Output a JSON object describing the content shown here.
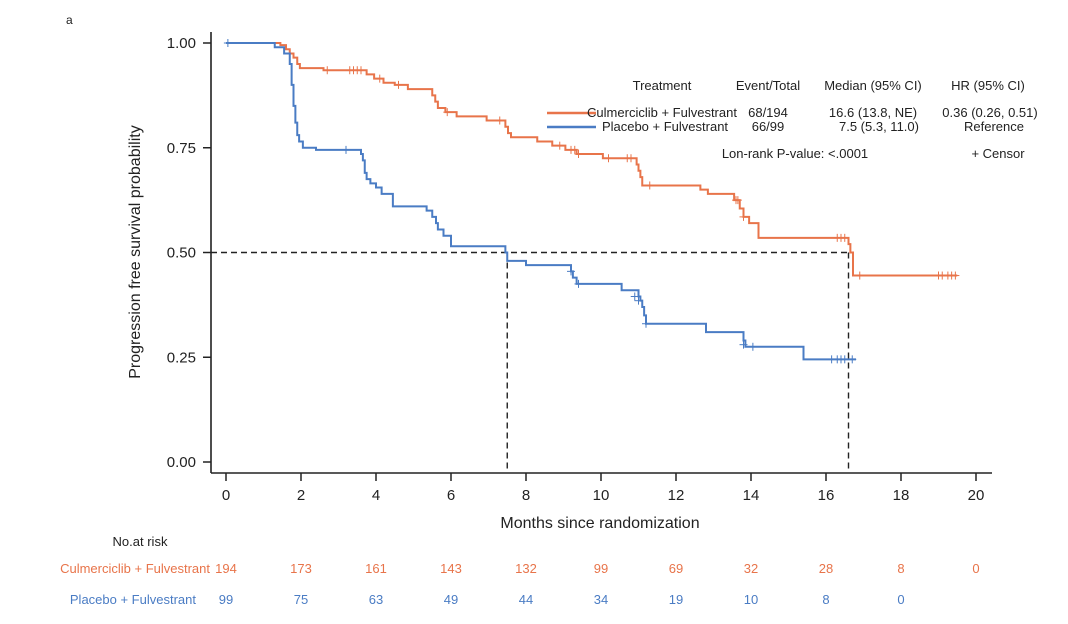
{
  "panel_label": "a",
  "colors": {
    "treatment": "#e8744a",
    "placebo": "#4a7cc4",
    "axis": "#222222",
    "reference": "#222222"
  },
  "chart_data": {
    "type": "line",
    "subtype": "kaplan-meier step",
    "title": "",
    "xlabel": "Months since randomization",
    "ylabel": "Progression free survival probability",
    "xlim": [
      0,
      20
    ],
    "ylim": [
      0,
      1
    ],
    "xticks": [
      "0",
      "2",
      "4",
      "6",
      "8",
      "10",
      "12",
      "14",
      "16",
      "18",
      "20"
    ],
    "xtick_values": [
      0,
      2,
      4,
      6,
      8,
      10,
      12,
      14,
      16,
      18,
      20
    ],
    "yticks": [
      "0.00",
      "0.25",
      "0.50",
      "0.75",
      "1.00"
    ],
    "ytick_values": [
      0,
      0.25,
      0.5,
      0.75,
      1.0
    ],
    "grid": false,
    "legend_position": "top-right",
    "reference_lines": {
      "y": 0.5,
      "medians_x": [
        7.5,
        16.6
      ]
    },
    "series": [
      {
        "name": "Culmerciclib + Fulvestrant",
        "color_key": "treatment",
        "steps": [
          [
            0,
            1.0
          ],
          [
            1.45,
            0.995
          ],
          [
            1.6,
            0.985
          ],
          [
            1.7,
            0.975
          ],
          [
            1.8,
            0.965
          ],
          [
            1.9,
            0.95
          ],
          [
            1.97,
            0.94
          ],
          [
            2.6,
            0.935
          ],
          [
            3.75,
            0.925
          ],
          [
            3.95,
            0.915
          ],
          [
            4.2,
            0.905
          ],
          [
            4.5,
            0.9
          ],
          [
            4.85,
            0.89
          ],
          [
            5.5,
            0.875
          ],
          [
            5.58,
            0.86
          ],
          [
            5.65,
            0.845
          ],
          [
            5.85,
            0.835
          ],
          [
            6.15,
            0.825
          ],
          [
            6.95,
            0.815
          ],
          [
            7.45,
            0.8
          ],
          [
            7.52,
            0.785
          ],
          [
            7.6,
            0.775
          ],
          [
            8.3,
            0.765
          ],
          [
            8.7,
            0.755
          ],
          [
            9.05,
            0.745
          ],
          [
            9.35,
            0.735
          ],
          [
            10.05,
            0.725
          ],
          [
            10.95,
            0.71
          ],
          [
            11.0,
            0.695
          ],
          [
            11.05,
            0.68
          ],
          [
            11.1,
            0.66
          ],
          [
            12.65,
            0.65
          ],
          [
            12.85,
            0.64
          ],
          [
            13.55,
            0.625
          ],
          [
            13.7,
            0.605
          ],
          [
            13.8,
            0.585
          ],
          [
            13.95,
            0.57
          ],
          [
            14.2,
            0.535
          ],
          [
            16.6,
            0.52
          ],
          [
            16.65,
            0.5
          ],
          [
            16.72,
            0.445
          ]
        ],
        "end": 19.5,
        "censors": [
          [
            2.7,
            0.935
          ],
          [
            3.3,
            0.935
          ],
          [
            3.4,
            0.935
          ],
          [
            3.5,
            0.935
          ],
          [
            3.6,
            0.935
          ],
          [
            4.1,
            0.915
          ],
          [
            4.6,
            0.9
          ],
          [
            5.9,
            0.835
          ],
          [
            7.3,
            0.815
          ],
          [
            8.9,
            0.755
          ],
          [
            9.2,
            0.745
          ],
          [
            9.3,
            0.745
          ],
          [
            9.4,
            0.735
          ],
          [
            10.2,
            0.725
          ],
          [
            10.7,
            0.725
          ],
          [
            10.8,
            0.725
          ],
          [
            11.3,
            0.66
          ],
          [
            13.6,
            0.625
          ],
          [
            13.65,
            0.625
          ],
          [
            13.8,
            0.585
          ],
          [
            16.3,
            0.535
          ],
          [
            16.4,
            0.535
          ],
          [
            16.5,
            0.535
          ],
          [
            16.9,
            0.445
          ],
          [
            19.0,
            0.445
          ],
          [
            19.1,
            0.445
          ],
          [
            19.25,
            0.445
          ],
          [
            19.35,
            0.445
          ],
          [
            19.45,
            0.445
          ]
        ]
      },
      {
        "name": "Placebo + Fulvestrant",
        "color_key": "placebo",
        "steps": [
          [
            0,
            1.0
          ],
          [
            1.3,
            0.99
          ],
          [
            1.55,
            0.975
          ],
          [
            1.7,
            0.95
          ],
          [
            1.75,
            0.9
          ],
          [
            1.8,
            0.85
          ],
          [
            1.85,
            0.81
          ],
          [
            1.9,
            0.78
          ],
          [
            1.95,
            0.765
          ],
          [
            2.05,
            0.75
          ],
          [
            2.4,
            0.745
          ],
          [
            3.6,
            0.735
          ],
          [
            3.65,
            0.72
          ],
          [
            3.7,
            0.69
          ],
          [
            3.75,
            0.675
          ],
          [
            3.85,
            0.665
          ],
          [
            4.0,
            0.655
          ],
          [
            4.15,
            0.64
          ],
          [
            4.45,
            0.61
          ],
          [
            5.35,
            0.6
          ],
          [
            5.5,
            0.585
          ],
          [
            5.6,
            0.57
          ],
          [
            5.65,
            0.555
          ],
          [
            5.8,
            0.54
          ],
          [
            6.0,
            0.515
          ],
          [
            7.45,
            0.5
          ],
          [
            7.5,
            0.48
          ],
          [
            8.0,
            0.47
          ],
          [
            9.2,
            0.455
          ],
          [
            9.25,
            0.44
          ],
          [
            9.35,
            0.425
          ],
          [
            10.55,
            0.41
          ],
          [
            11.0,
            0.395
          ],
          [
            11.05,
            0.385
          ],
          [
            11.1,
            0.37
          ],
          [
            11.15,
            0.35
          ],
          [
            11.2,
            0.33
          ],
          [
            12.8,
            0.31
          ],
          [
            13.8,
            0.29
          ],
          [
            13.85,
            0.275
          ],
          [
            15.4,
            0.245
          ]
        ],
        "end": 16.8,
        "censors": [
          [
            0.05,
            1.0
          ],
          [
            3.2,
            0.745
          ],
          [
            9.2,
            0.455
          ],
          [
            9.4,
            0.425
          ],
          [
            10.9,
            0.395
          ],
          [
            11.0,
            0.385
          ],
          [
            11.2,
            0.33
          ],
          [
            13.8,
            0.28
          ],
          [
            14.05,
            0.275
          ],
          [
            16.15,
            0.245
          ],
          [
            16.3,
            0.245
          ],
          [
            16.4,
            0.245
          ],
          [
            16.5,
            0.245
          ],
          [
            16.7,
            0.245
          ]
        ]
      }
    ],
    "legend": {
      "headers": {
        "treatment": "Treatment",
        "events": "Event/Total",
        "median": "Median (95% CI)",
        "hr": "HR (95% CI)"
      },
      "rows": [
        {
          "treatment": "Culmerciclib + Fulvestrant",
          "events": "68/194",
          "median": "16.6 (13.8, NE)",
          "hr": "0.36 (0.26, 0.51)"
        },
        {
          "treatment": "Placebo + Fulvestrant",
          "events": "66/99",
          "median": "7.5 (5.3, 11.0)",
          "hr": "Reference"
        }
      ],
      "pvalue": "Lon-rank P-value: <.0001",
      "censor_note": "+ Censor"
    },
    "risk_table": {
      "title": "No.at risk",
      "times": [
        0,
        2,
        4,
        6,
        8,
        10,
        12,
        14,
        16,
        18,
        20
      ],
      "rows": [
        {
          "label": "Culmerciclib + Fulvestrant",
          "color_key": "treatment",
          "values": [
            "194",
            "173",
            "161",
            "143",
            "132",
            "99",
            "69",
            "32",
            "28",
            "8",
            "0"
          ]
        },
        {
          "label": "Placebo + Fulvestrant",
          "color_key": "placebo",
          "values": [
            "99",
            "75",
            "63",
            "49",
            "44",
            "34",
            "19",
            "10",
            "8",
            "0"
          ]
        }
      ]
    }
  }
}
